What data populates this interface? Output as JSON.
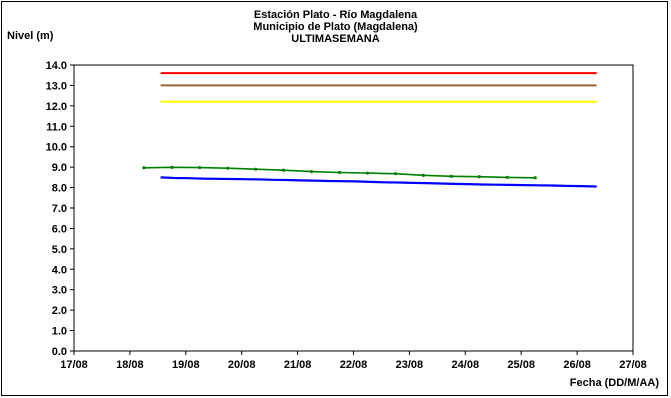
{
  "chart_data": {
    "type": "line",
    "title": [
      "Estación Plato - Río Magdalena",
      "Municipio de Plato (Magdalena)",
      "ULTIMASEMANA"
    ],
    "ylabel": "Nivel (m)",
    "xlabel": "Fecha (DD/M/AA)",
    "ylim": [
      0,
      14
    ],
    "y_ticks": [
      "0.0",
      "1.0",
      "2.0",
      "3.0",
      "4.0",
      "5.0",
      "6.0",
      "7.0",
      "8.0",
      "9.0",
      "10.0",
      "11.0",
      "12.0",
      "13.0",
      "14.0"
    ],
    "x_ticks": [
      "17/08",
      "18/08",
      "19/08",
      "20/08",
      "21/08",
      "22/08",
      "23/08",
      "24/08",
      "25/08",
      "26/08",
      "27/08"
    ],
    "grid": false,
    "thresholds": [
      {
        "value": 13.6,
        "x_range": [
          18.55,
          26.35
        ],
        "color": "#ff0000"
      },
      {
        "value": 13.0,
        "x_range": [
          18.55,
          26.35
        ],
        "color": "#996633"
      },
      {
        "value": 12.2,
        "x_range": [
          18.55,
          26.35
        ],
        "color": "#ffff00"
      }
    ],
    "series": [
      {
        "color": "#008000",
        "markers": true,
        "x": [
          18.25,
          18.75,
          19.25,
          19.75,
          20.25,
          20.75,
          21.25,
          21.75,
          22.25,
          22.75,
          23.25,
          23.75,
          24.25,
          24.75,
          25.25
        ],
        "values": [
          8.97,
          8.99,
          8.98,
          8.95,
          8.9,
          8.85,
          8.78,
          8.74,
          8.71,
          8.68,
          8.6,
          8.55,
          8.53,
          8.5,
          8.48
        ]
      },
      {
        "color": "#0000ff",
        "markers": false,
        "x": [
          18.55,
          18.8,
          19.05,
          19.3,
          19.55,
          19.8,
          20.05,
          20.3,
          20.55,
          20.8,
          21.05,
          21.3,
          21.55,
          21.8,
          22.05,
          22.3,
          22.55,
          22.8,
          23.05,
          23.3,
          23.55,
          23.8,
          24.05,
          24.3,
          24.55,
          24.8,
          25.05,
          25.3,
          25.55,
          25.8,
          26.05,
          26.35
        ],
        "values": [
          8.5,
          8.47,
          8.46,
          8.44,
          8.43,
          8.42,
          8.41,
          8.4,
          8.38,
          8.37,
          8.35,
          8.34,
          8.32,
          8.31,
          8.3,
          8.28,
          8.26,
          8.25,
          8.23,
          8.22,
          8.2,
          8.18,
          8.17,
          8.15,
          8.14,
          8.13,
          8.12,
          8.11,
          8.1,
          8.08,
          8.07,
          8.05
        ]
      }
    ]
  }
}
